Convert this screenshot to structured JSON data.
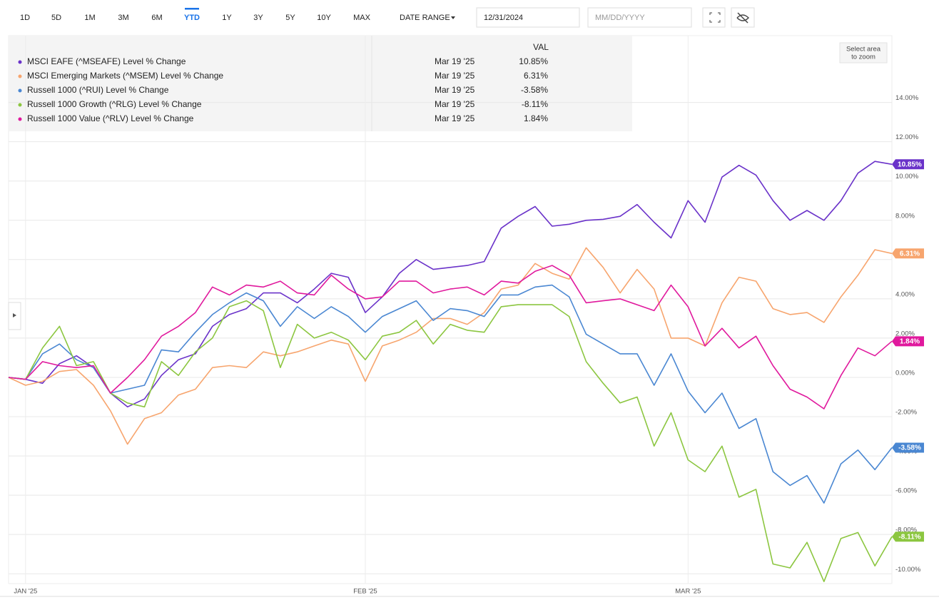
{
  "toolbar": {
    "ranges": [
      "1D",
      "5D",
      "1M",
      "3M",
      "6M",
      "YTD",
      "1Y",
      "3Y",
      "5Y",
      "10Y",
      "MAX"
    ],
    "active_range": "YTD",
    "date_range_label": "DATE RANGE",
    "start_date": "12/31/2024",
    "end_date_placeholder": "MM/DD/YYYY"
  },
  "zoom_hint": [
    "Select area",
    "to zoom"
  ],
  "chart_data": {
    "type": "line",
    "legend_header": "VAL",
    "legend_date": "Mar 19 '25",
    "categories": [
      null,
      "JAN '25",
      null,
      null,
      null,
      null,
      null,
      null,
      null,
      null,
      null,
      null,
      null,
      null,
      null,
      null,
      null,
      null,
      null,
      null,
      null,
      "FEB '25",
      null,
      null,
      null,
      null,
      null,
      null,
      null,
      null,
      null,
      null,
      null,
      null,
      null,
      null,
      null,
      null,
      null,
      null,
      "MAR '25",
      null,
      null,
      null,
      null,
      null,
      null,
      null,
      null,
      null,
      null,
      null,
      null
    ],
    "ylim": [
      -10.5,
      17.4
    ],
    "yticks": [
      {
        "value": -10,
        "label": "-10.00%"
      },
      {
        "value": -8,
        "label": "-8.00%"
      },
      {
        "value": -6,
        "label": "-6.00%"
      },
      {
        "value": -4,
        "label": "-4.00%"
      },
      {
        "value": -2,
        "label": "-2.00%"
      },
      {
        "value": 0,
        "label": "0.00%"
      },
      {
        "value": 2,
        "label": "2.00%"
      },
      {
        "value": 4,
        "label": "4.00%"
      },
      {
        "value": 6,
        "label": "6.00%"
      },
      {
        "value": 8,
        "label": "8.00%"
      },
      {
        "value": 10,
        "label": "10.00%"
      },
      {
        "value": 12,
        "label": "12.00%"
      },
      {
        "value": 14,
        "label": "14.00%"
      }
    ],
    "grid": true,
    "series": [
      {
        "name": "MSCI EAFE (^MSEAFE) Level % Change",
        "color": "#6a32c9",
        "values": [
          0,
          -0.1,
          -0.3,
          0.7,
          1.1,
          0.5,
          -0.8,
          -1.5,
          -1.1,
          0.1,
          0.9,
          1.2,
          2.6,
          3.2,
          3.5,
          4.3,
          4.3,
          3.8,
          4.5,
          5.3,
          5.1,
          3.3,
          4.1,
          5.3,
          6.0,
          5.5,
          5.6,
          5.7,
          5.9,
          7.6,
          8.2,
          8.7,
          7.7,
          7.8,
          8.0,
          8.05,
          8.2,
          8.8,
          7.9,
          7.1,
          9.0,
          7.9,
          10.2,
          10.8,
          10.3,
          9.0,
          8.0,
          8.5,
          8.0,
          9.0,
          10.4,
          11.0,
          10.85
        ],
        "value_labels": [
          null,
          null,
          null,
          null,
          null,
          null,
          null,
          null,
          null,
          null,
          null,
          null,
          null,
          null,
          null,
          null,
          null,
          null,
          null,
          null,
          null,
          null,
          null,
          null,
          null,
          null,
          null,
          null,
          null,
          null,
          null,
          null,
          null,
          null,
          null,
          null,
          null,
          null,
          null,
          null,
          null,
          null,
          null,
          null,
          null,
          null,
          null,
          null,
          null,
          null,
          null,
          null,
          "10.85%"
        ]
      },
      {
        "name": "MSCI Emerging Markets (^MSEM) Level % Change",
        "color": "#f7a56e",
        "values": [
          0,
          -0.4,
          -0.2,
          0.3,
          0.4,
          -0.4,
          -1.7,
          -3.4,
          -2.1,
          -1.8,
          -0.9,
          -0.6,
          0.5,
          0.6,
          0.5,
          1.3,
          1.1,
          1.3,
          1.6,
          1.9,
          1.7,
          -0.2,
          1.6,
          1.9,
          2.3,
          3.0,
          3.0,
          2.7,
          3.3,
          4.5,
          4.7,
          5.8,
          5.3,
          5.0,
          6.6,
          5.6,
          4.3,
          5.5,
          4.5,
          2.0,
          2.0,
          1.6,
          3.8,
          5.1,
          4.9,
          3.5,
          3.2,
          3.3,
          2.8,
          4.1,
          5.2,
          6.5,
          6.31
        ],
        "value_labels": [
          null,
          null,
          null,
          null,
          null,
          null,
          null,
          null,
          null,
          null,
          null,
          null,
          null,
          null,
          null,
          null,
          null,
          null,
          null,
          null,
          null,
          null,
          null,
          null,
          null,
          null,
          null,
          null,
          null,
          null,
          null,
          null,
          null,
          null,
          null,
          null,
          null,
          null,
          null,
          null,
          null,
          null,
          null,
          null,
          null,
          null,
          null,
          null,
          null,
          null,
          null,
          null,
          "6.31%"
        ]
      },
      {
        "name": "Russell 1000 (^RUI) Level % Change",
        "color": "#4a87d2",
        "values": [
          0,
          -0.1,
          1.2,
          1.7,
          0.9,
          0.5,
          -0.8,
          -0.6,
          -0.4,
          1.4,
          1.3,
          2.3,
          3.2,
          3.8,
          4.3,
          3.9,
          2.6,
          3.6,
          3.0,
          3.6,
          3.1,
          2.3,
          3.1,
          3.5,
          3.9,
          2.9,
          3.5,
          3.4,
          3.1,
          4.2,
          4.2,
          4.6,
          4.7,
          4.1,
          2.2,
          1.7,
          1.2,
          1.2,
          -0.4,
          1.2,
          -0.7,
          -1.8,
          -0.8,
          -2.6,
          -2.1,
          -4.8,
          -5.5,
          -5.0,
          -6.4,
          -4.4,
          -3.7,
          -4.7,
          -3.58
        ],
        "value_labels": [
          null,
          null,
          null,
          null,
          null,
          null,
          null,
          null,
          null,
          null,
          null,
          null,
          null,
          null,
          null,
          null,
          null,
          null,
          null,
          null,
          null,
          null,
          null,
          null,
          null,
          null,
          null,
          null,
          null,
          null,
          null,
          null,
          null,
          null,
          null,
          null,
          null,
          null,
          null,
          null,
          null,
          null,
          null,
          null,
          null,
          null,
          null,
          null,
          null,
          null,
          null,
          null,
          "-3.58%"
        ]
      },
      {
        "name": "Russell 1000 Growth (^RLG) Level % Change",
        "color": "#8cc640",
        "values": [
          0,
          -0.1,
          1.5,
          2.6,
          0.6,
          0.8,
          -0.8,
          -1.3,
          -1.5,
          0.8,
          0.1,
          1.3,
          2.0,
          3.6,
          3.9,
          3.4,
          0.5,
          2.7,
          2.0,
          2.3,
          1.9,
          0.9,
          2.1,
          2.3,
          2.9,
          1.7,
          2.7,
          2.4,
          2.3,
          3.6,
          3.7,
          3.7,
          3.7,
          3.1,
          0.8,
          -0.3,
          -1.3,
          -1.0,
          -3.5,
          -1.8,
          -4.2,
          -4.8,
          -3.5,
          -6.1,
          -5.7,
          -9.5,
          -9.7,
          -8.4,
          -10.4,
          -8.2,
          -7.9,
          -9.6,
          -8.11
        ],
        "value_labels": [
          null,
          null,
          null,
          null,
          null,
          null,
          null,
          null,
          null,
          null,
          null,
          null,
          null,
          null,
          null,
          null,
          null,
          null,
          null,
          null,
          null,
          null,
          null,
          null,
          null,
          null,
          null,
          null,
          null,
          null,
          null,
          null,
          null,
          null,
          null,
          null,
          null,
          null,
          null,
          null,
          null,
          null,
          null,
          null,
          null,
          null,
          null,
          null,
          null,
          null,
          null,
          null,
          "-8.11%"
        ]
      },
      {
        "name": "Russell 1000 Value (^RLV) Level % Change",
        "color": "#e0199d",
        "values": [
          0,
          -0.1,
          0.8,
          0.6,
          0.5,
          0.6,
          -0.8,
          0.0,
          0.9,
          2.1,
          2.6,
          3.3,
          4.6,
          4.2,
          4.7,
          4.6,
          4.9,
          4.3,
          4.2,
          5.2,
          4.5,
          4.0,
          4.1,
          4.9,
          4.9,
          4.3,
          4.5,
          4.6,
          4.2,
          4.9,
          4.8,
          5.4,
          5.7,
          5.2,
          3.8,
          3.9,
          4.0,
          3.7,
          3.4,
          4.7,
          3.6,
          1.6,
          2.5,
          1.5,
          2.1,
          0.6,
          -0.6,
          -1.0,
          -1.6,
          0.1,
          1.5,
          1.1,
          1.84
        ],
        "value_labels": [
          null,
          null,
          null,
          null,
          null,
          null,
          null,
          null,
          null,
          null,
          null,
          null,
          null,
          null,
          null,
          null,
          null,
          null,
          null,
          null,
          null,
          null,
          null,
          null,
          null,
          null,
          null,
          null,
          null,
          null,
          null,
          null,
          null,
          null,
          null,
          null,
          null,
          null,
          null,
          null,
          null,
          null,
          null,
          null,
          null,
          null,
          null,
          null,
          null,
          null,
          null,
          null,
          "1.84%"
        ]
      }
    ]
  }
}
